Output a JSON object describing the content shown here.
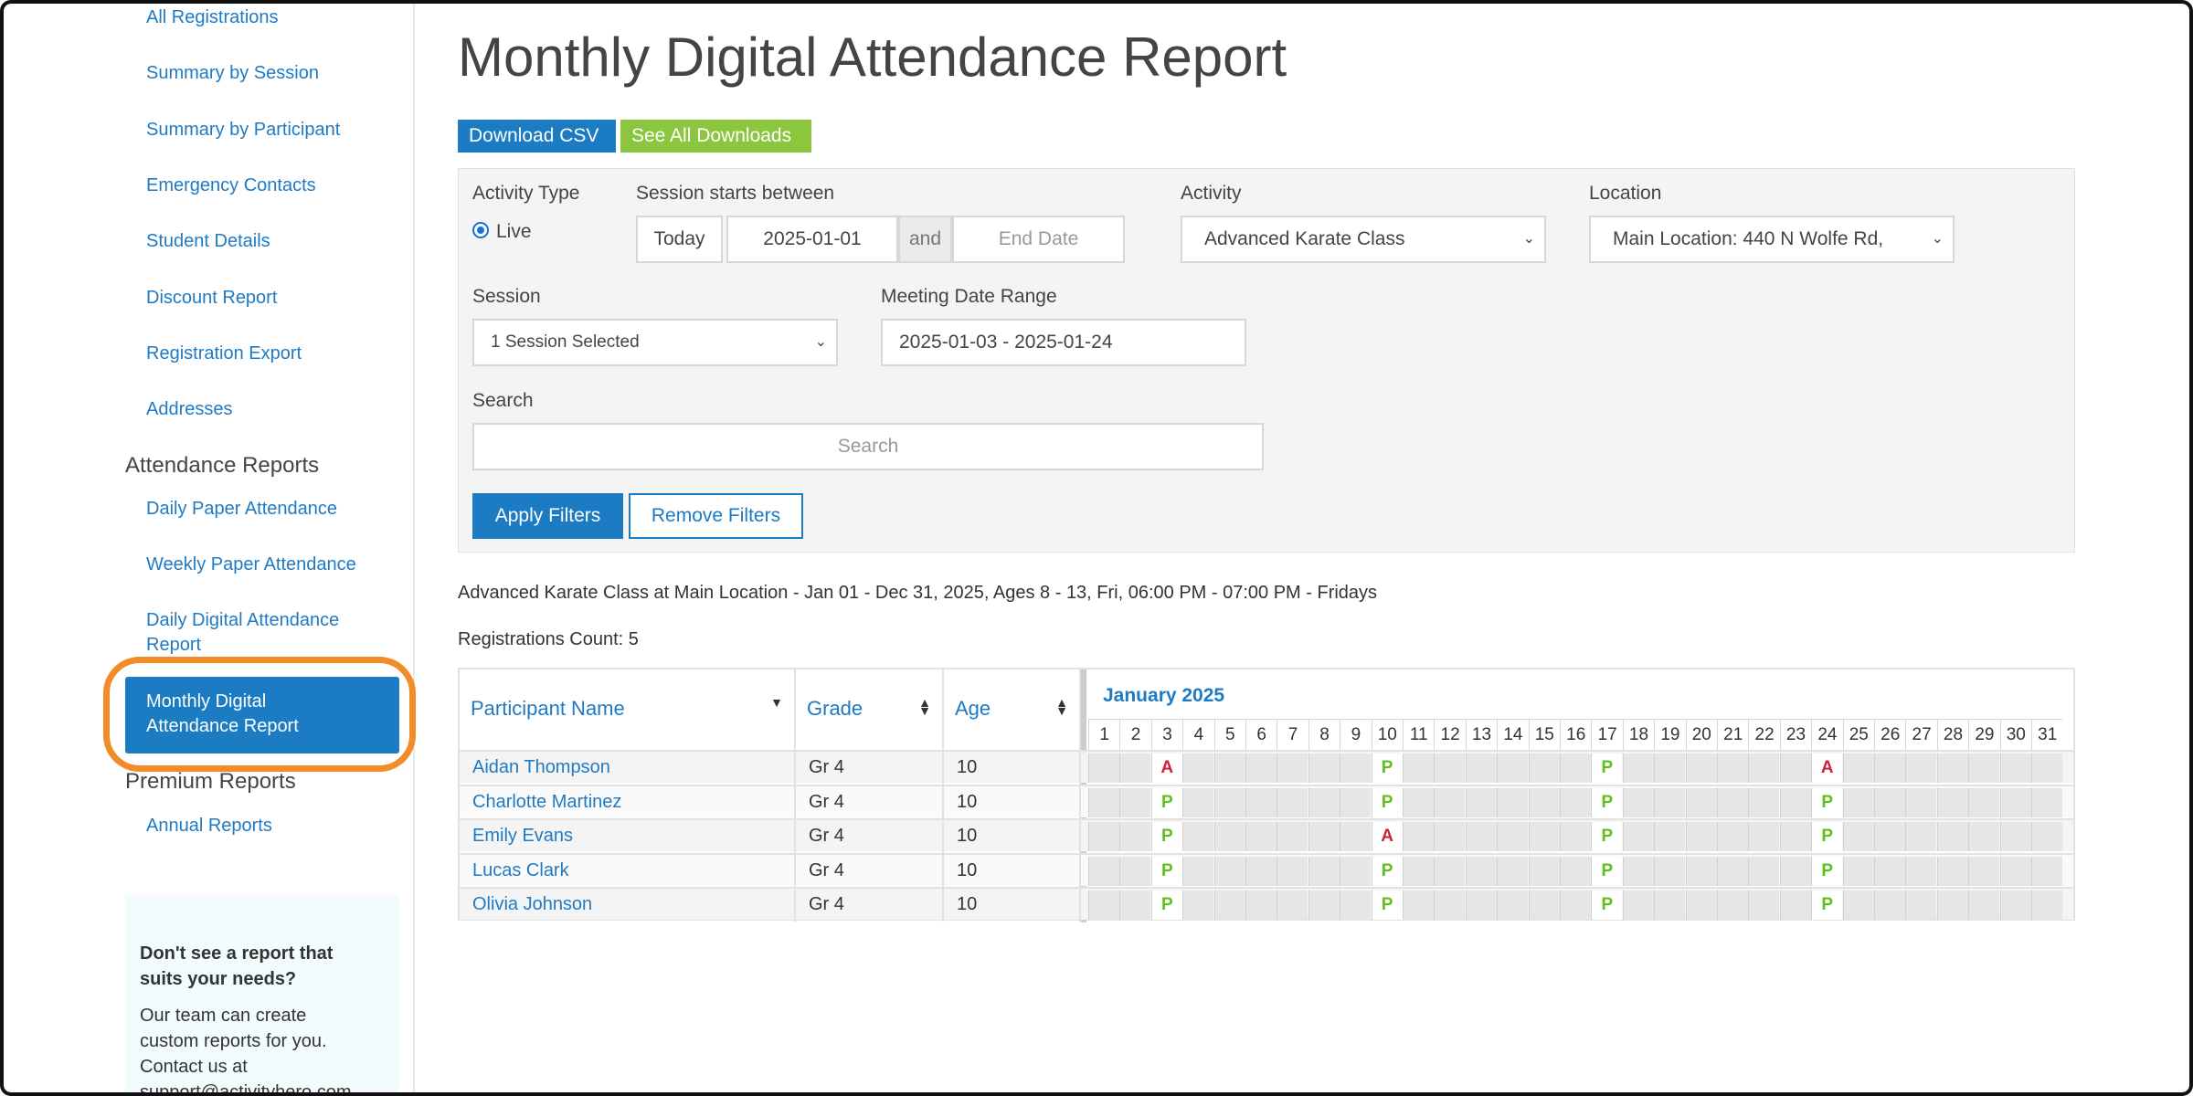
{
  "sidebar": {
    "links_top": [
      "All Registrations",
      "Summary by Session",
      "Summary by Participant",
      "Emergency Contacts",
      "Student Details",
      "Discount Report",
      "Registration Export",
      "Addresses"
    ],
    "attendance_heading": "Attendance Reports",
    "attendance_links": [
      "Daily Paper Attendance",
      "Weekly Paper Attendance",
      "Daily Digital Attendance",
      "Report"
    ],
    "active_item_line1": "Monthly Digital",
    "active_item_line2": "Attendance Report",
    "premium_heading": "Premium Reports",
    "premium_links": [
      "Annual Reports"
    ],
    "help_title_1": "Don't see a report that",
    "help_title_2": "suits your needs?",
    "help_text_1": "Our team can create",
    "help_text_2": "custom reports for you.",
    "help_text_3": "Contact us at",
    "help_text_4": "support@activityhero.com"
  },
  "main": {
    "title": "Monthly Digital Attendance Report",
    "download_csv": "Download CSV",
    "see_all_downloads": "See All Downloads"
  },
  "filters": {
    "activity_type_label": "Activity Type",
    "activity_type_option": "Live",
    "session_starts_label": "Session starts between",
    "today_btn": "Today",
    "start_date": "2025-01-01",
    "and_label": "and",
    "end_date_placeholder": "End Date",
    "activity_label": "Activity",
    "activity_value": "Advanced Karate Class",
    "location_label": "Location",
    "location_value": "Main Location: 440 N Wolfe Rd,",
    "session_label": "Session",
    "session_value": "1 Session Selected",
    "meeting_range_label": "Meeting Date Range",
    "meeting_range_value": "2025-01-03 - 2025-01-24",
    "search_label": "Search",
    "search_placeholder": "Search",
    "apply": "Apply Filters",
    "remove": "Remove Filters"
  },
  "report": {
    "description": "Advanced Karate Class at Main Location - Jan 01 - Dec 31, 2025, Ages 8 - 13, Fri, 06:00 PM - 07:00 PM - Fridays",
    "count": "Registrations Count: 5",
    "columns": [
      "Participant Name",
      "Grade",
      "Age"
    ],
    "month": "January 2025",
    "days": [
      "1",
      "2",
      "3",
      "4",
      "5",
      "6",
      "7",
      "8",
      "9",
      "10",
      "11",
      "12",
      "13",
      "14",
      "15",
      "16",
      "17",
      "18",
      "19",
      "20",
      "21",
      "22",
      "23",
      "24",
      "25",
      "26",
      "27",
      "28",
      "29",
      "30",
      "31"
    ],
    "rows": [
      {
        "name": "Aidan Thompson",
        "grade": "Gr 4",
        "age": "10",
        "att": {
          "3": "A",
          "10": "P",
          "17": "P",
          "24": "A"
        }
      },
      {
        "name": "Charlotte Martinez",
        "grade": "Gr 4",
        "age": "10",
        "att": {
          "3": "P",
          "10": "P",
          "17": "P",
          "24": "P"
        }
      },
      {
        "name": "Emily Evans",
        "grade": "Gr 4",
        "age": "10",
        "att": {
          "3": "P",
          "10": "A",
          "17": "P",
          "24": "P"
        }
      },
      {
        "name": "Lucas Clark",
        "grade": "Gr 4",
        "age": "10",
        "att": {
          "3": "P",
          "10": "P",
          "17": "P",
          "24": "P"
        }
      },
      {
        "name": "Olivia Johnson",
        "grade": "Gr 4",
        "age": "10",
        "att": {
          "3": "P",
          "10": "P",
          "17": "P",
          "24": "P"
        }
      }
    ]
  }
}
